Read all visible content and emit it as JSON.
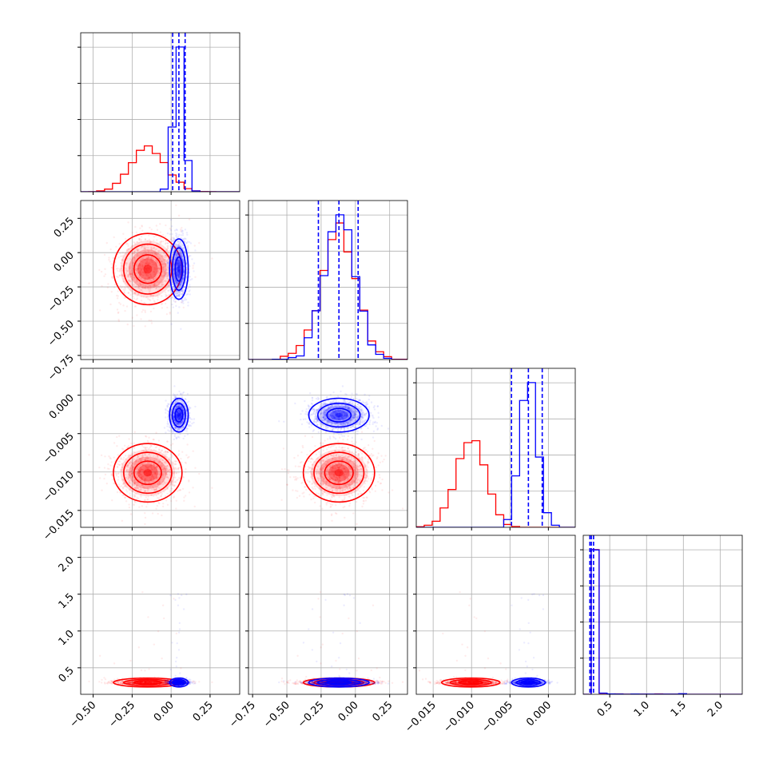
{
  "figure": {
    "type": "corner-plot"
  },
  "colors": {
    "red": "#ff0000",
    "blue": "#0000ff",
    "grid": "#b0b0b0",
    "axes": "#000000"
  },
  "chart_data": {
    "type": "scatter",
    "variables": [
      {
        "range": [
          -0.58,
          0.44
        ],
        "ticks": [
          -0.5,
          -0.25,
          0.0,
          0.25
        ],
        "tick_labels": [
          "−0.50",
          "−0.25",
          "0.00",
          "0.25"
        ]
      },
      {
        "range": [
          -0.78,
          0.38
        ],
        "ticks": [
          -0.75,
          -0.5,
          -0.25,
          0.0,
          0.25
        ],
        "tick_labels": [
          "−0.75",
          "−0.50",
          "−0.25",
          "0.00",
          "0.25"
        ]
      },
      {
        "range": [
          -0.0172,
          0.0035
        ],
        "ticks": [
          -0.015,
          -0.01,
          -0.005,
          0.0
        ],
        "tick_labels": [
          "−0.015",
          "−0.010",
          "−0.005",
          "0.000"
        ]
      },
      {
        "range": [
          0.14,
          2.3
        ],
        "ticks": [
          0.5,
          1.0,
          1.5,
          2.0
        ],
        "tick_labels": [
          "0.5",
          "1.0",
          "1.5",
          "2.0"
        ]
      }
    ],
    "series": [
      {
        "color": "#ff0000",
        "mean": [
          -0.15,
          -0.12,
          -0.0101,
          0.3
        ],
        "std": [
          0.11,
          0.13,
          0.0019,
          0.03
        ],
        "corr_12": 0.1
      },
      {
        "color": "#0000ff",
        "mean": [
          0.05,
          -0.12,
          -0.0026,
          0.3
        ],
        "std": [
          0.03,
          0.11,
          0.0011,
          0.03
        ],
        "corr_12": 0.0
      }
    ],
    "quantile_lines": [
      [
        0.01,
        0.05,
        0.09
      ],
      [
        -0.27,
        -0.12,
        0.02
      ],
      [
        -0.0048,
        -0.0026,
        -0.0008
      ],
      [
        0.23,
        0.25,
        0.28
      ]
    ],
    "grid": true,
    "legend": "none"
  }
}
